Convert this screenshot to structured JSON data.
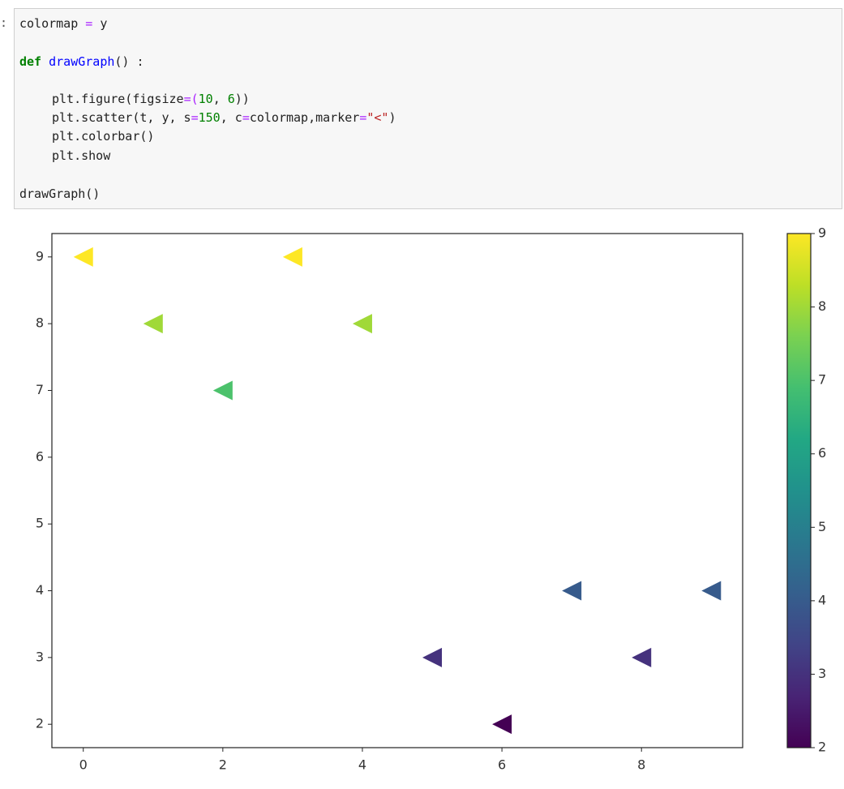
{
  "code": {
    "prompt": ":",
    "lines": [
      [
        "colormap ",
        "=",
        " y"
      ],
      [
        "def",
        " drawGraph",
        "() :"
      ],
      [
        "plt.figure(figsize",
        "=(",
        "10",
        ", ",
        "6",
        "))"
      ],
      [
        "plt.scatter(t, y, s",
        "=",
        "150",
        ", c",
        "=",
        "colormap,marker",
        "=",
        "\"<\"",
        ")"
      ],
      [
        "plt.colorbar()"
      ],
      [
        "plt.show"
      ],
      [
        "drawGraph()"
      ]
    ]
  },
  "chart_data": {
    "type": "scatter",
    "marker": "<",
    "colormap": "viridis",
    "x": [
      0,
      1,
      2,
      3,
      4,
      5,
      6,
      7,
      8,
      9
    ],
    "values": [
      9,
      8,
      7,
      9,
      8,
      3,
      2,
      4,
      3,
      4
    ],
    "xlim": [
      -0.45,
      9.45
    ],
    "ylim": [
      1.65,
      9.35
    ],
    "xticks": [
      0,
      2,
      4,
      6,
      8
    ],
    "yticks": [
      2,
      3,
      4,
      5,
      6,
      7,
      8,
      9
    ],
    "clim": [
      2,
      9
    ],
    "cticks": [
      2,
      3,
      4,
      5,
      6,
      7,
      8,
      9
    ]
  }
}
